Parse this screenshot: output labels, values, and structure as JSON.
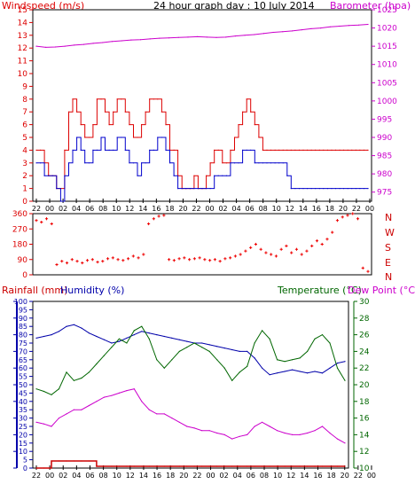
{
  "header": {
    "left_title": "Windspeed (m/s)",
    "center_title": "24 hour graph day : 10 July 2014",
    "right_title": "Barometer (hpa)"
  },
  "panel2": {
    "right_labels": [
      "N",
      "W",
      "S",
      "E",
      "N"
    ]
  },
  "panel3": {
    "rain_title": "Rainfall (mm)",
    "hum_title": "Humidity (%)",
    "temp_title": "Temperature (°C)",
    "dew_title": "Dew Point (°C)"
  },
  "colors": {
    "wind_max": "#dd0000",
    "wind_avg": "#0000cc",
    "barometer": "#cc00cc",
    "direction": "#ee0000",
    "humidity": "#0000aa",
    "temperature": "#006600",
    "dewpoint": "#cc00cc",
    "rain": "#cc0000",
    "axis_blue": "#0000aa",
    "axis_green": "#006600"
  },
  "x_hour_labels": [
    "22",
    "00",
    "02",
    "04",
    "06",
    "08",
    "10",
    "12",
    "14",
    "16",
    "18",
    "20",
    "22",
    "00",
    "02",
    "04",
    "06",
    "08",
    "10",
    "12",
    "14",
    "16",
    "18",
    "20",
    "22",
    "00"
  ],
  "chart_data": [
    {
      "type": "line",
      "title": "24 hour graph day : 10 July 2014",
      "ylabel": "Windspeed (m/s)",
      "y2label": "Barometer (hpa)",
      "ylim": [
        0,
        15
      ],
      "y2lim": [
        972.5,
        1025
      ],
      "y_ticks": [
        0,
        1,
        2,
        3,
        4,
        5,
        6,
        7,
        8,
        9,
        10,
        11,
        12,
        13,
        14,
        15
      ],
      "y2_ticks": [
        975,
        980,
        985,
        990,
        995,
        1000,
        1005,
        1010,
        1015,
        1020,
        1025
      ],
      "x_step_hours": 0.5,
      "series": [
        {
          "values": [
            4,
            4,
            3,
            2,
            2,
            1,
            1,
            4,
            7,
            8,
            7,
            6,
            5,
            5,
            6,
            8,
            8,
            7,
            6,
            7,
            8,
            8,
            7,
            6,
            5,
            5,
            6,
            7,
            8,
            8,
            8,
            7,
            6,
            4,
            4,
            2,
            1,
            1,
            1,
            2,
            1,
            1,
            2,
            3,
            4,
            4,
            3,
            3,
            4,
            5,
            6,
            7,
            8,
            7,
            6,
            5,
            4,
            4,
            4,
            4,
            4,
            4,
            4,
            4,
            4,
            4,
            4,
            4,
            4,
            4,
            4,
            4,
            4,
            4,
            4,
            4,
            4,
            4,
            4,
            4,
            4,
            4,
            4
          ]
        },
        {
          "values": [
            3,
            3,
            2,
            2,
            2,
            1,
            0,
            2,
            3,
            4,
            5,
            4,
            3,
            3,
            4,
            4,
            5,
            4,
            4,
            4,
            5,
            5,
            4,
            3,
            3,
            2,
            3,
            3,
            4,
            4,
            5,
            5,
            4,
            3,
            2,
            1,
            1,
            1,
            1,
            1,
            1,
            1,
            1,
            1,
            2,
            2,
            2,
            2,
            3,
            3,
            3,
            4,
            4,
            4,
            3,
            3,
            3,
            3,
            3,
            3,
            3,
            3,
            2,
            1,
            1,
            1,
            1,
            1,
            1,
            1,
            1,
            1,
            1,
            1,
            1,
            1,
            1,
            1,
            1,
            1,
            1,
            1,
            1
          ]
        },
        {
          "values": [
            1015,
            1014.7,
            1014.8,
            1015,
            1015.3,
            1015.5,
            1015.8,
            1016,
            1016.3,
            1016.5,
            1016.7,
            1016.8,
            1017,
            1017.2,
            1017.3,
            1017.4,
            1017.5,
            1017.6,
            1017.5,
            1017.4,
            1017.5,
            1017.8,
            1018,
            1018.2,
            1018.5,
            1018.8,
            1019,
            1019.2,
            1019.5,
            1019.8,
            1020,
            1020.3,
            1020.5,
            1020.7,
            1020.8,
            1021
          ]
        }
      ]
    },
    {
      "type": "scatter",
      "ylabel": "Wind direction (degrees)",
      "ylim": [
        0,
        360
      ],
      "y_ticks": [
        0,
        90,
        180,
        270,
        360
      ],
      "x_step_hours": 0.5,
      "series": [
        {
          "values": [
            320,
            310,
            330,
            300,
            60,
            80,
            70,
            90,
            80,
            70,
            85,
            90,
            75,
            80,
            95,
            100,
            90,
            85,
            95,
            110,
            100,
            120,
            300,
            330,
            345,
            350,
            90,
            85,
            95,
            100,
            90,
            95,
            100,
            90,
            85,
            90,
            80,
            95,
            100,
            110,
            120,
            140,
            160,
            180,
            150,
            130,
            120,
            110,
            150,
            170,
            130,
            150,
            120,
            140,
            170,
            200,
            180,
            210,
            250,
            320,
            340,
            350,
            360,
            330,
            40,
            20
          ]
        }
      ]
    },
    {
      "type": "line",
      "ylabel": "Rainfall (mm) / Humidity (%)",
      "y2label": "Temperature (°C) / Dew Point (°C)",
      "ylim": [
        0,
        100
      ],
      "y_ticks": [
        0,
        5,
        10,
        15,
        20,
        25,
        30,
        35,
        40,
        45,
        50,
        55,
        60,
        65,
        70,
        75,
        80,
        85,
        90,
        95,
        100
      ],
      "y2lim": [
        10,
        30
      ],
      "y2_ticks": [
        10,
        12,
        14,
        16,
        18,
        20,
        22,
        24,
        26,
        28,
        30
      ],
      "x_step_hours": 1,
      "series": [
        {
          "values": [
            78,
            79,
            80,
            82,
            85,
            86,
            84,
            81,
            79,
            77,
            75,
            76,
            78,
            80,
            82,
            81,
            80,
            79,
            78,
            77,
            76,
            75,
            75,
            74,
            73,
            72,
            71,
            70,
            70,
            66,
            60,
            56,
            57,
            58,
            59,
            58,
            57,
            58,
            57,
            60,
            63,
            64
          ]
        },
        {
          "values": [
            19.5,
            19.2,
            18.8,
            19.5,
            21.5,
            20.5,
            20.8,
            21.5,
            22.5,
            23.5,
            24.5,
            25.5,
            25,
            26.5,
            27,
            25.5,
            23,
            22,
            23,
            24,
            24.5,
            25,
            24.5,
            24,
            23,
            22,
            20.5,
            21.5,
            22.2,
            25,
            26.5,
            25.5,
            23,
            22.8,
            23,
            23.2,
            24,
            25.5,
            26,
            25,
            22,
            20.5
          ]
        },
        {
          "values": [
            15.5,
            15.3,
            15,
            16,
            16.5,
            17,
            17,
            17.5,
            18,
            18.5,
            18.7,
            19,
            19.3,
            19.5,
            18,
            17,
            16.5,
            16.5,
            16,
            15.5,
            15,
            14.8,
            14.5,
            14.5,
            14.2,
            14,
            13.5,
            13.8,
            14,
            15,
            15.5,
            15,
            14.5,
            14.2,
            14,
            14,
            14.2,
            14.5,
            15,
            14.2,
            13.5,
            13
          ]
        },
        {
          "values": [
            0,
            0,
            0.2,
            0.2,
            0.2,
            0.2,
            0.2,
            0.2,
            0.05,
            0.05,
            0.05,
            0.05,
            0.05,
            0.05,
            0.05,
            0.05,
            0.05,
            0.05,
            0.05,
            0.05,
            0.05,
            0.05,
            0.05,
            0.05,
            0.05,
            0.05,
            0.05,
            0.05,
            0.05,
            0.05,
            0.05,
            0.05,
            0.05,
            0.05,
            0.05,
            0.05,
            0.05,
            0.05,
            0.05,
            0.05,
            0.05,
            0.05
          ]
        }
      ]
    }
  ]
}
